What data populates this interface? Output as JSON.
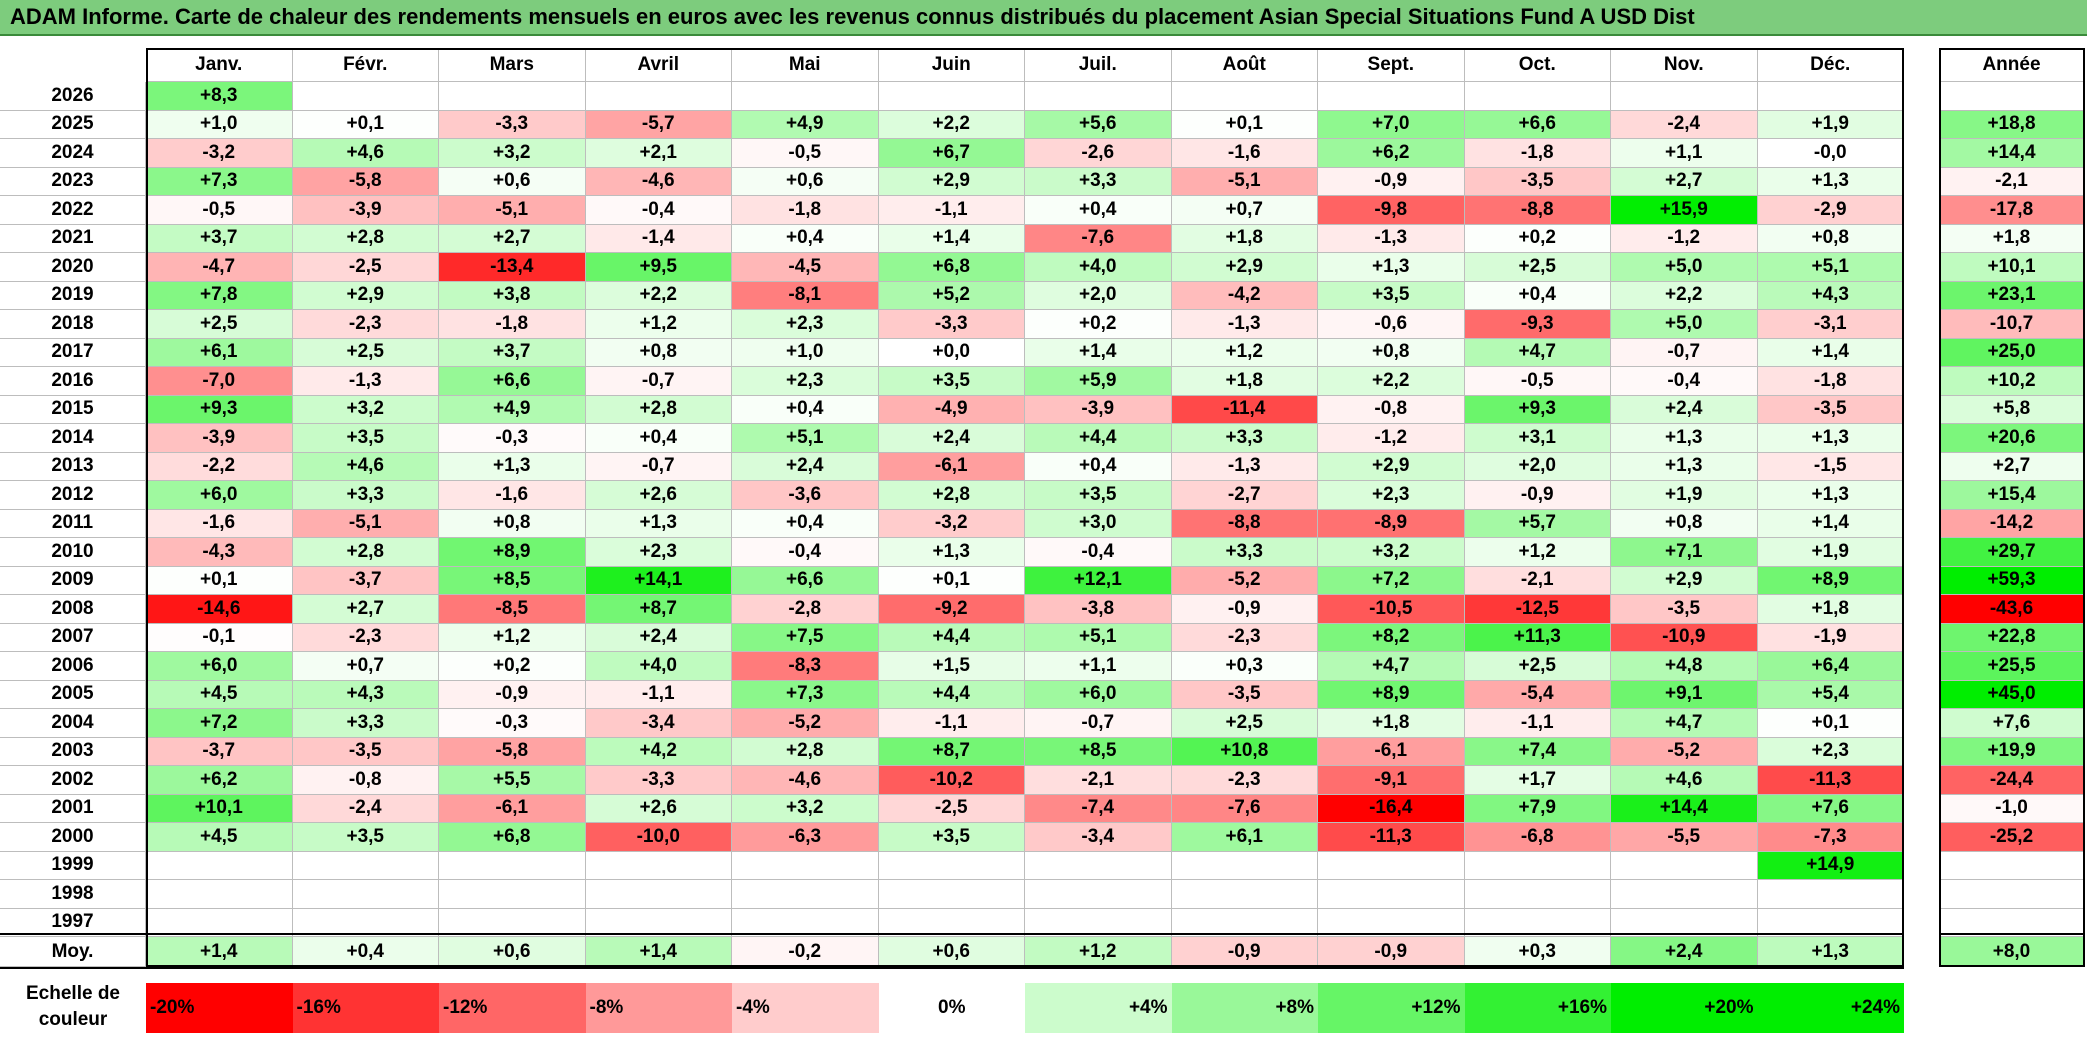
{
  "title": "ADAM Informe. Carte de chaleur des rendements mensuels en euros avec les revenus connus distribués du placement Asian Special Situations Fund A USD Dist",
  "chart_data": {
    "type": "heatmap",
    "months": [
      "Janv.",
      "Févr.",
      "Mars",
      "Avril",
      "Mai",
      "Juin",
      "Juil.",
      "Août",
      "Sept.",
      "Oct.",
      "Nov.",
      "Déc."
    ],
    "year_label": "Année",
    "years": [
      "2026",
      "2025",
      "2024",
      "2023",
      "2022",
      "2021",
      "2020",
      "2019",
      "2018",
      "2017",
      "2016",
      "2015",
      "2014",
      "2013",
      "2012",
      "2011",
      "2010",
      "2009",
      "2008",
      "2007",
      "2006",
      "2005",
      "2004",
      "2003",
      "2002",
      "2001",
      "2000",
      "1999",
      "1998",
      "1997"
    ],
    "values": [
      [
        "+8,3",
        "",
        "",
        "",
        "",
        "",
        "",
        "",
        "",
        "",
        "",
        ""
      ],
      [
        "+1,0",
        "+0,1",
        "-3,3",
        "-5,7",
        "+4,9",
        "+2,2",
        "+5,6",
        "+0,1",
        "+7,0",
        "+6,6",
        "-2,4",
        "+1,9"
      ],
      [
        "-3,2",
        "+4,6",
        "+3,2",
        "+2,1",
        "-0,5",
        "+6,7",
        "-2,6",
        "-1,6",
        "+6,2",
        "-1,8",
        "+1,1",
        "-0,0"
      ],
      [
        "+7,3",
        "-5,8",
        "+0,6",
        "-4,6",
        "+0,6",
        "+2,9",
        "+3,3",
        "-5,1",
        "-0,9",
        "-3,5",
        "+2,7",
        "+1,3"
      ],
      [
        "-0,5",
        "-3,9",
        "-5,1",
        "-0,4",
        "-1,8",
        "-1,1",
        "+0,4",
        "+0,7",
        "-9,8",
        "-8,8",
        "+15,9",
        "-2,9"
      ],
      [
        "+3,7",
        "+2,8",
        "+2,7",
        "-1,4",
        "+0,4",
        "+1,4",
        "-7,6",
        "+1,8",
        "-1,3",
        "+0,2",
        "-1,2",
        "+0,8"
      ],
      [
        "-4,7",
        "-2,5",
        "-13,4",
        "+9,5",
        "-4,5",
        "+6,8",
        "+4,0",
        "+2,9",
        "+1,3",
        "+2,5",
        "+5,0",
        "+5,1"
      ],
      [
        "+7,8",
        "+2,9",
        "+3,8",
        "+2,2",
        "-8,1",
        "+5,2",
        "+2,0",
        "-4,2",
        "+3,5",
        "+0,4",
        "+2,2",
        "+4,3"
      ],
      [
        "+2,5",
        "-2,3",
        "-1,8",
        "+1,2",
        "+2,3",
        "-3,3",
        "+0,2",
        "-1,3",
        "-0,6",
        "-9,3",
        "+5,0",
        "-3,1"
      ],
      [
        "+6,1",
        "+2,5",
        "+3,7",
        "+0,8",
        "+1,0",
        "+0,0",
        "+1,4",
        "+1,2",
        "+0,8",
        "+4,7",
        "-0,7",
        "+1,4"
      ],
      [
        "-7,0",
        "-1,3",
        "+6,6",
        "-0,7",
        "+2,3",
        "+3,5",
        "+5,9",
        "+1,8",
        "+2,2",
        "-0,5",
        "-0,4",
        "-1,8"
      ],
      [
        "+9,3",
        "+3,2",
        "+4,9",
        "+2,8",
        "+0,4",
        "-4,9",
        "-3,9",
        "-11,4",
        "-0,8",
        "+9,3",
        "+2,4",
        "-3,5"
      ],
      [
        "-3,9",
        "+3,5",
        "-0,3",
        "+0,4",
        "+5,1",
        "+2,4",
        "+4,4",
        "+3,3",
        "-1,2",
        "+3,1",
        "+1,3",
        "+1,3"
      ],
      [
        "-2,2",
        "+4,6",
        "+1,3",
        "-0,7",
        "+2,4",
        "-6,1",
        "+0,4",
        "-1,3",
        "+2,9",
        "+2,0",
        "+1,3",
        "-1,5"
      ],
      [
        "+6,0",
        "+3,3",
        "-1,6",
        "+2,6",
        "-3,6",
        "+2,8",
        "+3,5",
        "-2,7",
        "+2,3",
        "-0,9",
        "+1,9",
        "+1,3"
      ],
      [
        "-1,6",
        "-5,1",
        "+0,8",
        "+1,3",
        "+0,4",
        "-3,2",
        "+3,0",
        "-8,8",
        "-8,9",
        "+5,7",
        "+0,8",
        "+1,4"
      ],
      [
        "-4,3",
        "+2,8",
        "+8,9",
        "+2,3",
        "-0,4",
        "+1,3",
        "-0,4",
        "+3,3",
        "+3,2",
        "+1,2",
        "+7,1",
        "+1,9"
      ],
      [
        "+0,1",
        "-3,7",
        "+8,5",
        "+14,1",
        "+6,6",
        "+0,1",
        "+12,1",
        "-5,2",
        "+7,2",
        "-2,1",
        "+2,9",
        "+8,9"
      ],
      [
        "-14,6",
        "+2,7",
        "-8,5",
        "+8,7",
        "-2,8",
        "-9,2",
        "-3,8",
        "-0,9",
        "-10,5",
        "-12,5",
        "-3,5",
        "+1,8"
      ],
      [
        "-0,1",
        "-2,3",
        "+1,2",
        "+2,4",
        "+7,5",
        "+4,4",
        "+5,1",
        "-2,3",
        "+8,2",
        "+11,3",
        "-10,9",
        "-1,9"
      ],
      [
        "+6,0",
        "+0,7",
        "+0,2",
        "+4,0",
        "-8,3",
        "+1,5",
        "+1,1",
        "+0,3",
        "+4,7",
        "+2,5",
        "+4,8",
        "+6,4"
      ],
      [
        "+4,5",
        "+4,3",
        "-0,9",
        "-1,1",
        "+7,3",
        "+4,4",
        "+6,0",
        "-3,5",
        "+8,9",
        "-5,4",
        "+9,1",
        "+5,4"
      ],
      [
        "+7,2",
        "+3,3",
        "-0,3",
        "-3,4",
        "-5,2",
        "-1,1",
        "-0,7",
        "+2,5",
        "+1,8",
        "-1,1",
        "+4,7",
        "+0,1"
      ],
      [
        "-3,7",
        "-3,5",
        "-5,8",
        "+4,2",
        "+2,8",
        "+8,7",
        "+8,5",
        "+10,8",
        "-6,1",
        "+7,4",
        "-5,2",
        "+2,3"
      ],
      [
        "+6,2",
        "-0,8",
        "+5,5",
        "-3,3",
        "-4,6",
        "-10,2",
        "-2,1",
        "-2,3",
        "-9,1",
        "+1,7",
        "+4,6",
        "-11,3"
      ],
      [
        "+10,1",
        "-2,4",
        "-6,1",
        "+2,6",
        "+3,2",
        "-2,5",
        "-7,4",
        "-7,6",
        "-16,4",
        "+7,9",
        "+14,4",
        "+7,6"
      ],
      [
        "+4,5",
        "+3,5",
        "+6,8",
        "-10,0",
        "-6,3",
        "+3,5",
        "-3,4",
        "+6,1",
        "-11,3",
        "-6,8",
        "-5,5",
        "-7,3"
      ],
      [
        "",
        "",
        "",
        "",
        "",
        "",
        "",
        "",
        "",
        "",
        "",
        "+14,9"
      ],
      [
        "",
        "",
        "",
        "",
        "",
        "",
        "",
        "",
        "",
        "",
        "",
        ""
      ],
      [
        "",
        "",
        "",
        "",
        "",
        "",
        "",
        "",
        "",
        "",
        "",
        ""
      ]
    ],
    "annual": [
      "",
      "+18,8",
      "+14,4",
      "-2,1",
      "-17,8",
      "+1,8",
      "+10,1",
      "+23,1",
      "-10,7",
      "+25,0",
      "+10,2",
      "+5,8",
      "+20,6",
      "+2,7",
      "+15,4",
      "-14,2",
      "+29,7",
      "+59,3",
      "-43,6",
      "+22,8",
      "+25,5",
      "+45,0",
      "+7,6",
      "+19,9",
      "-24,4",
      "-1,0",
      "-25,2",
      "",
      "",
      ""
    ],
    "average_label": "Moy.",
    "averages": [
      "+1,4",
      "+0,4",
      "+0,6",
      "+1,4",
      "-0,2",
      "+0,6",
      "+1,2",
      "-0,9",
      "-0,9",
      "+0,3",
      "+2,4",
      "+1,3"
    ],
    "average_annual": "+8,0",
    "scale_label": "Echelle de couleur",
    "scale": [
      "-20%",
      "-16%",
      "-12%",
      "-8%",
      "-4%",
      "0%",
      "+4%",
      "+8%",
      "+12%",
      "+16%",
      "+20%",
      "+24%"
    ],
    "scale_values": [
      -20,
      -16,
      -12,
      -8,
      -4,
      0,
      4,
      8,
      12,
      16,
      20,
      24
    ],
    "colors": {
      "negative": "#ff0000",
      "positive": "#00ee00",
      "neutral": "#ffffff",
      "title_bg": "#7dcc7d"
    }
  }
}
